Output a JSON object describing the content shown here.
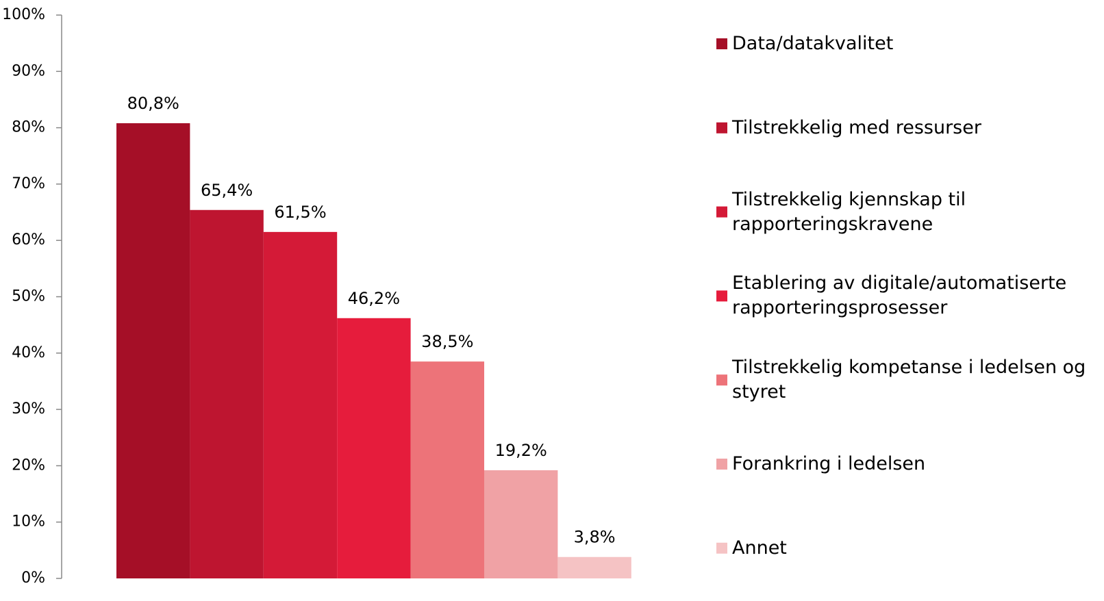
{
  "chart_data": {
    "type": "bar",
    "series": [
      {
        "name": "Data/datakvalitet",
        "color": "#a50f27",
        "values": [
          80.8
        ],
        "value_labels": [
          "80,8%"
        ]
      },
      {
        "name": "Tilstrekkelig med ressurser",
        "color": "#be1530",
        "values": [
          65.4
        ],
        "value_labels": [
          "65,4%"
        ]
      },
      {
        "name": "Tilstrekkelig kjennskap til rapporteringskravene",
        "color": "#d41a37",
        "values": [
          61.5
        ],
        "value_labels": [
          "61,5%"
        ]
      },
      {
        "name": "Etablering av digitale/automatiserte rapporteringsprosesser",
        "color": "#e61c3c",
        "values": [
          46.2
        ],
        "value_labels": [
          "46,2%"
        ]
      },
      {
        "name": "Tilstrekkelig kompetanse i ledelsen og styret",
        "color": "#ed7379",
        "values": [
          38.5
        ],
        "value_labels": [
          "38,5%"
        ]
      },
      {
        "name": "Forankring i ledelsen",
        "color": "#f0a2a5",
        "values": [
          19.2
        ],
        "value_labels": [
          "19,2%"
        ]
      },
      {
        "name": "Annet",
        "color": "#f5c3c4",
        "values": [
          3.8
        ],
        "value_labels": [
          "3,8%"
        ]
      }
    ],
    "ylim": [
      0,
      100
    ],
    "yticks": [
      {
        "value": 0,
        "label": "0%"
      },
      {
        "value": 10,
        "label": "10%"
      },
      {
        "value": 20,
        "label": "20%"
      },
      {
        "value": 30,
        "label": "30%"
      },
      {
        "value": 40,
        "label": "40%"
      },
      {
        "value": 50,
        "label": "50%"
      },
      {
        "value": 60,
        "label": "60%"
      },
      {
        "value": 70,
        "label": "70%"
      },
      {
        "value": 80,
        "label": "80%"
      },
      {
        "value": 90,
        "label": "90%"
      },
      {
        "value": 100,
        "label": "100%"
      }
    ],
    "legend": "right"
  }
}
